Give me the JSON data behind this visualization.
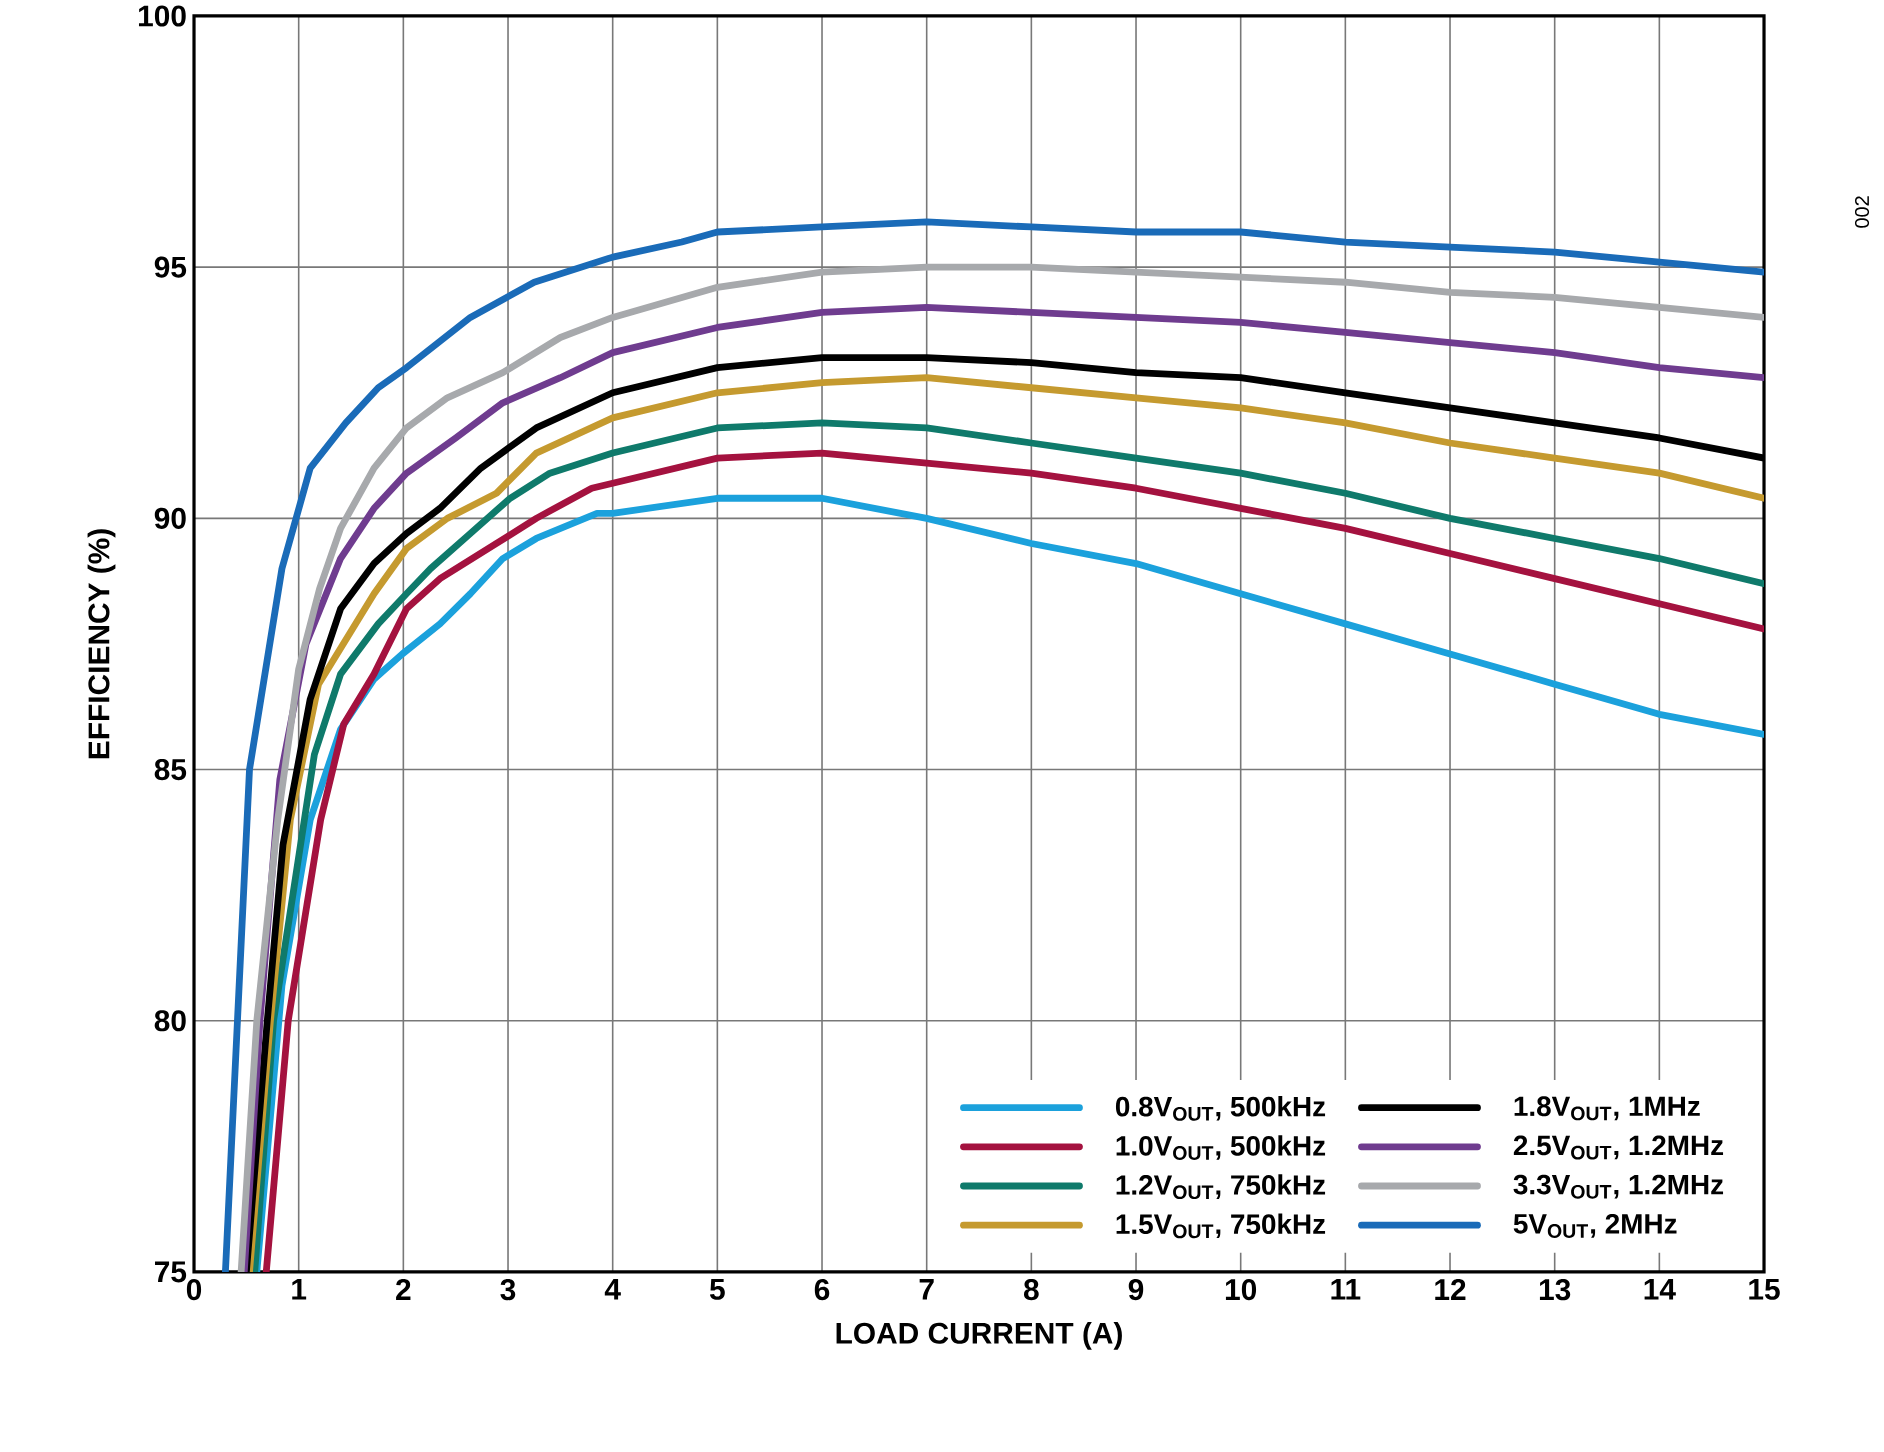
{
  "chart_data": {
    "type": "line",
    "xlabel": "LOAD CURRENT (A)",
    "ylabel": "EFFICIENCY (%)",
    "xlim": [
      0,
      15
    ],
    "ylim": [
      75,
      100
    ],
    "xticks": [
      0,
      1,
      2,
      3,
      4,
      5,
      6,
      7,
      8,
      9,
      10,
      11,
      12,
      13,
      14,
      15
    ],
    "yticks": [
      75,
      80,
      85,
      90,
      95,
      100
    ],
    "grid": true,
    "legend": "bottom right",
    "line_style": "solid",
    "marker": "none",
    "annotations": [
      "002"
    ],
    "series": [
      {
        "name": "0.8V$_{OUT}$, 500kHz",
        "color": "#1ba1dc",
        "x": [
          0.6,
          0.84,
          1.11,
          1.4,
          1.72,
          1.99,
          2.35,
          2.64,
          2.95,
          3.27,
          3.85,
          4,
          5,
          6,
          7,
          8,
          9,
          10,
          11,
          12,
          13,
          14,
          15
        ],
        "values": [
          75,
          80.7,
          84,
          85.8,
          86.8,
          87.3,
          87.9,
          88.5,
          89.2,
          89.6,
          90.1,
          90.1,
          90.4,
          90.4,
          90,
          89.5,
          89.1,
          88.5,
          87.9,
          87.3,
          86.7,
          86.1,
          85.7
        ]
      },
      {
        "name": "1.0V$_{OUT}$, 500kHz",
        "color": "#a4123f",
        "x": [
          0.69,
          0.9,
          1.21,
          1.43,
          1.72,
          2.03,
          2.35,
          2.89,
          3.27,
          3.8,
          4,
          5,
          6,
          7,
          8,
          9,
          10,
          11,
          12,
          13,
          14,
          15
        ],
        "values": [
          75,
          80,
          84,
          85.9,
          86.9,
          88.2,
          88.8,
          89.5,
          90,
          90.6,
          90.7,
          91.2,
          91.3,
          91.1,
          90.9,
          90.6,
          90.2,
          89.8,
          89.3,
          88.8,
          88.3,
          87.8
        ]
      },
      {
        "name": "1.2V$_{OUT}$, 750kHz",
        "color": "#0f7a6b",
        "x": [
          0.58,
          0.76,
          1.15,
          1.4,
          1.76,
          2.03,
          2.26,
          2.64,
          3.02,
          3.4,
          4,
          5,
          6,
          7,
          8,
          9,
          10,
          11,
          12,
          13,
          14,
          15
        ],
        "values": [
          75,
          80,
          85.3,
          86.9,
          87.9,
          88.5,
          89,
          89.7,
          90.4,
          90.9,
          91.3,
          91.8,
          91.9,
          91.8,
          91.5,
          91.2,
          90.9,
          90.5,
          90,
          89.6,
          89.2,
          88.7
        ]
      },
      {
        "name": "1.5V$_{OUT}$, 750kHz",
        "color": "#c59a2f",
        "x": [
          0.53,
          0.73,
          0.92,
          1.19,
          1.72,
          2.03,
          2.42,
          2.89,
          3.27,
          4,
          5,
          6,
          7,
          8,
          9,
          10,
          11,
          12,
          13,
          14,
          15
        ],
        "values": [
          75,
          80,
          84,
          86.7,
          88.5,
          89.4,
          90,
          90.5,
          91.3,
          92,
          92.5,
          92.7,
          92.8,
          92.6,
          92.4,
          92.2,
          91.9,
          91.5,
          91.2,
          90.9,
          90.4
        ]
      },
      {
        "name": "1.8V$_{OUT}$, 1MHz",
        "color": "#000000",
        "x": [
          0.5,
          0.7,
          0.85,
          1.11,
          1.4,
          1.72,
          2.03,
          2.35,
          2.74,
          3.27,
          4,
          5,
          6,
          7,
          8,
          9,
          10,
          11,
          12,
          13,
          14,
          15
        ],
        "values": [
          75,
          80,
          83.5,
          86.4,
          88.2,
          89.1,
          89.7,
          90.2,
          91,
          91.8,
          92.5,
          93,
          93.2,
          93.2,
          93.1,
          92.9,
          92.8,
          92.5,
          92.2,
          91.9,
          91.6,
          91.2
        ]
      },
      {
        "name": "2.5V$_{OUT}$, 1.2MHz",
        "color": "#6f3c8f",
        "x": [
          0.48,
          0.63,
          0.82,
          1.07,
          1.4,
          1.72,
          2.03,
          2.5,
          2.95,
          3.5,
          4,
          5,
          6,
          7,
          8,
          9,
          10,
          11,
          12,
          13,
          14,
          15
        ],
        "values": [
          75,
          80,
          84.8,
          87.5,
          89.2,
          90.2,
          90.9,
          91.6,
          92.3,
          92.8,
          93.3,
          93.8,
          94.1,
          94.2,
          94.1,
          94,
          93.9,
          93.7,
          93.5,
          93.3,
          93,
          92.8
        ]
      },
      {
        "name": "3.3V$_{OUT}$, 1.2MHz",
        "color": "#a7a9ac",
        "x": [
          0.45,
          0.6,
          0.8,
          1,
          1.2,
          1.4,
          1.72,
          2.03,
          2.42,
          2.95,
          3.5,
          4,
          5,
          6,
          7,
          8,
          9,
          10,
          11,
          12,
          13,
          14,
          15
        ],
        "values": [
          75,
          80,
          84,
          87,
          88.6,
          89.8,
          91,
          91.8,
          92.4,
          92.9,
          93.6,
          94,
          94.6,
          94.9,
          95,
          95,
          94.9,
          94.8,
          94.7,
          94.5,
          94.4,
          94.2,
          94
        ]
      },
      {
        "name": "5V$_{OUT}$, 2MHz",
        "color": "#1a6bb8",
        "x": [
          0.3,
          0.53,
          0.84,
          1.11,
          1.45,
          1.76,
          2.03,
          2.64,
          3.25,
          4,
          4.66,
          5,
          6,
          7,
          8,
          9,
          10,
          11,
          12,
          13,
          14,
          15
        ],
        "values": [
          75,
          85,
          89,
          91,
          91.9,
          92.6,
          93,
          94,
          94.7,
          95.2,
          95.5,
          95.7,
          95.8,
          95.9,
          95.8,
          95.7,
          95.7,
          95.5,
          95.4,
          95.3,
          95.1,
          94.9
        ]
      }
    ]
  }
}
